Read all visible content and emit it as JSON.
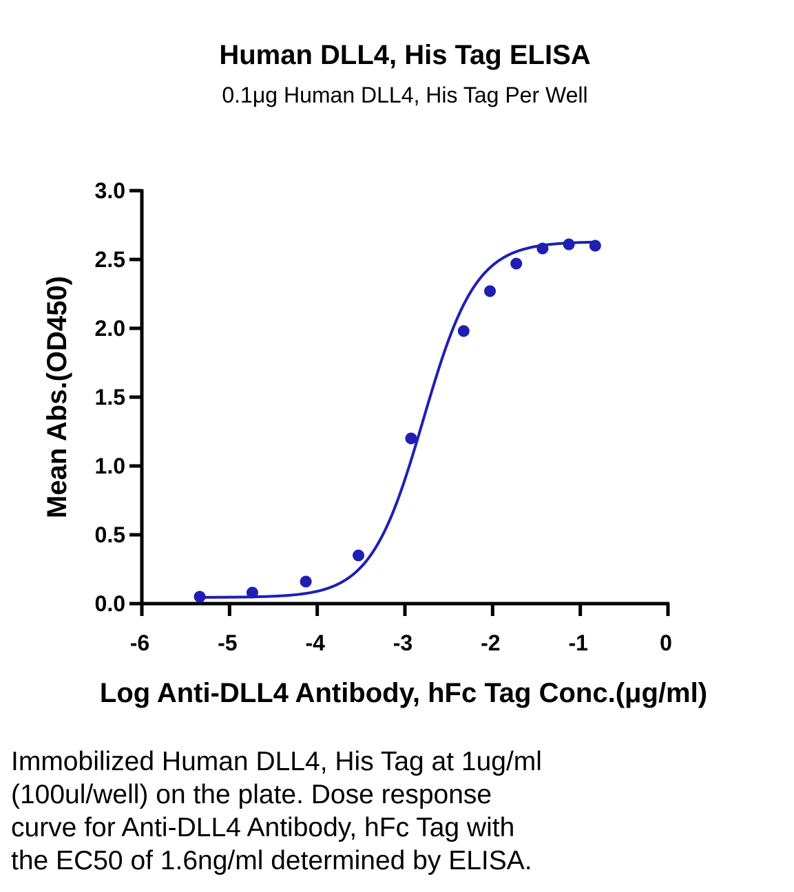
{
  "chart_data": {
    "type": "scatter",
    "title": "Human DLL4, His Tag ELISA",
    "subtitle": "0.1μg Human DLL4, His Tag Per Well",
    "xlabel": "Log Anti-DLL4 Antibody, hFc Tag Conc.(μg/ml)",
    "ylabel": "Mean Abs.(OD450)",
    "xlim": [
      -6,
      0
    ],
    "ylim": [
      0,
      3.0
    ],
    "x_ticks": [
      "-6",
      "-5",
      "-4",
      "-3",
      "-2",
      "-1",
      "0"
    ],
    "y_ticks": [
      "0.0",
      "0.5",
      "1.0",
      "1.5",
      "2.0",
      "2.5",
      "3.0"
    ],
    "grid": false,
    "color": "#1f1fb4",
    "series": [
      {
        "points": [
          {
            "x": -5.34,
            "y": 0.05
          },
          {
            "x": -4.74,
            "y": 0.08
          },
          {
            "x": -4.13,
            "y": 0.16
          },
          {
            "x": -3.53,
            "y": 0.35
          },
          {
            "x": -2.93,
            "y": 1.2
          },
          {
            "x": -2.33,
            "y": 1.98
          },
          {
            "x": -2.03,
            "y": 2.27
          },
          {
            "x": -1.73,
            "y": 2.47
          },
          {
            "x": -1.43,
            "y": 2.58
          },
          {
            "x": -1.13,
            "y": 2.61
          },
          {
            "x": -0.83,
            "y": 2.6
          }
        ],
        "fit": {
          "model": "4PL",
          "bottom": 0.045,
          "top": 2.63,
          "log_ec50": -2.79,
          "hill": 1.45
        }
      }
    ]
  },
  "caption": {
    "lines": [
      "Immobilized Human DLL4, His Tag at 1ug/ml",
      "(100ul/well) on the plate. Dose response",
      "curve for Anti-DLL4 Antibody, hFc Tag with",
      "the EC50 of 1.6ng/ml determined by ELISA."
    ]
  }
}
